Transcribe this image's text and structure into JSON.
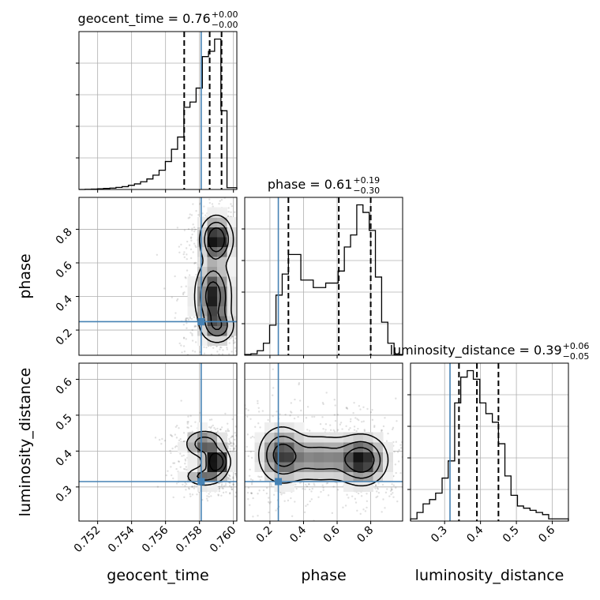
{
  "chart_data": {
    "type": "corner",
    "parameters": [
      "geocent_time",
      "phase",
      "luminosity_distance"
    ],
    "truth_color": "#4682b4",
    "truths": {
      "geocent_time": 0.7581,
      "phase": 0.25,
      "luminosity_distance": 0.315
    },
    "titles": [
      {
        "param": "geocent_time",
        "label": "geocent_time = 0.76",
        "plus": "+0.00",
        "minus": "−0.00"
      },
      {
        "param": "phase",
        "label": "phase = 0.61",
        "plus": "+0.19",
        "minus": "−0.30"
      },
      {
        "param": "luminosity_distance",
        "label": "luminosity_distance = 0.39",
        "plus": "+0.06",
        "minus": "−0.05"
      }
    ],
    "ranges": {
      "geocent_time": [
        0.7509,
        0.7602
      ],
      "phase": [
        0.05,
        0.99
      ],
      "luminosity_distance": [
        0.205,
        0.645
      ]
    },
    "ticks": {
      "geocent_time": {
        "values": [
          0.752,
          0.754,
          0.756,
          0.758,
          0.76
        ],
        "labels": [
          "0.752",
          "0.754",
          "0.756",
          "0.758",
          "0.760"
        ]
      },
      "phase": {
        "values": [
          0.2,
          0.4,
          0.6,
          0.8
        ],
        "labels": [
          "0.2",
          "0.4",
          "0.6",
          "0.8"
        ]
      },
      "luminosity_distance": {
        "values": [
          0.3,
          0.4,
          0.5,
          0.6
        ],
        "labels": [
          "0.3",
          "0.4",
          "0.5",
          "0.6"
        ]
      }
    },
    "quantile_lines": {
      "geocent_time": [
        0.7571,
        0.7586,
        0.7593
      ],
      "phase": [
        0.31,
        0.61,
        0.8
      ],
      "luminosity_distance": [
        0.34,
        0.39,
        0.45
      ]
    },
    "histograms": {
      "geocent_time": {
        "edges": [
          0.7509,
          0.75126,
          0.75163,
          0.75199,
          0.75235,
          0.75272,
          0.75308,
          0.75344,
          0.75381,
          0.75417,
          0.75453,
          0.7549,
          0.75526,
          0.75562,
          0.75599,
          0.75635,
          0.75671,
          0.75708,
          0.75744,
          0.7578,
          0.75817,
          0.75853,
          0.75889,
          0.75926,
          0.75962,
          0.7602
        ],
        "counts": [
          0,
          0.5,
          1,
          2,
          3,
          4,
          6,
          8,
          12,
          16,
          22,
          30,
          41,
          55,
          80,
          115,
          150,
          235,
          250,
          290,
          380,
          395,
          430,
          225,
          5
        ]
      },
      "phase": {
        "edges": [
          0.05,
          0.087,
          0.124,
          0.161,
          0.198,
          0.236,
          0.273,
          0.31,
          0.347,
          0.384,
          0.421,
          0.458,
          0.495,
          0.532,
          0.569,
          0.606,
          0.643,
          0.68,
          0.717,
          0.754,
          0.791,
          0.828,
          0.865,
          0.902,
          0.939,
          0.99
        ],
        "counts": [
          0.5,
          1,
          3,
          8,
          20,
          40,
          54,
          67,
          67,
          50,
          50,
          45,
          45,
          48,
          48,
          56,
          72,
          80,
          100,
          95,
          83,
          52,
          22,
          8,
          0.5
        ]
      },
      "luminosity_distance": {
        "edges": [
          0.205,
          0.223,
          0.24,
          0.258,
          0.275,
          0.293,
          0.31,
          0.328,
          0.345,
          0.363,
          0.38,
          0.398,
          0.415,
          0.433,
          0.45,
          0.468,
          0.485,
          0.503,
          0.52,
          0.538,
          0.555,
          0.573,
          0.59,
          0.608,
          0.645
        ],
        "counts": [
          1,
          4,
          8,
          10,
          13,
          20,
          28,
          55,
          67,
          70,
          66,
          55,
          50,
          46,
          36,
          21,
          12,
          7,
          6,
          5,
          4,
          3,
          1,
          1
        ]
      }
    },
    "contour_levels": [
      0.39,
      0.86,
      0.99
    ],
    "modes": [
      {
        "x": "geocent_time",
        "y": "phase",
        "components": [
          {
            "mx": 0.759,
            "my": 0.74,
            "sx": 0.00048,
            "sy": 0.07,
            "w": 1.0
          },
          {
            "mx": 0.7588,
            "my": 0.4,
            "sx": 0.00055,
            "sy": 0.11,
            "w": 0.85
          },
          {
            "mx": 0.7591,
            "my": 0.22,
            "sx": 0.0005,
            "sy": 0.05,
            "w": 0.5
          }
        ]
      },
      {
        "x": "geocent_time",
        "y": "luminosity_distance",
        "components": [
          {
            "mx": 0.759,
            "my": 0.37,
            "sx": 0.0004,
            "sy": 0.02,
            "w": 1.0
          },
          {
            "mx": 0.7583,
            "my": 0.42,
            "sx": 0.0006,
            "sy": 0.02,
            "w": 0.55
          },
          {
            "mx": 0.7583,
            "my": 0.33,
            "sx": 0.0006,
            "sy": 0.015,
            "w": 0.45
          }
        ]
      },
      {
        "x": "phase",
        "y": "luminosity_distance",
        "components": [
          {
            "mx": 0.75,
            "my": 0.375,
            "sx": 0.075,
            "sy": 0.035,
            "w": 1.0
          },
          {
            "mx": 0.27,
            "my": 0.39,
            "sx": 0.07,
            "sy": 0.04,
            "w": 0.8
          },
          {
            "mx": 0.5,
            "my": 0.38,
            "sx": 0.13,
            "sy": 0.035,
            "w": 0.55
          }
        ]
      }
    ],
    "grid": true
  }
}
